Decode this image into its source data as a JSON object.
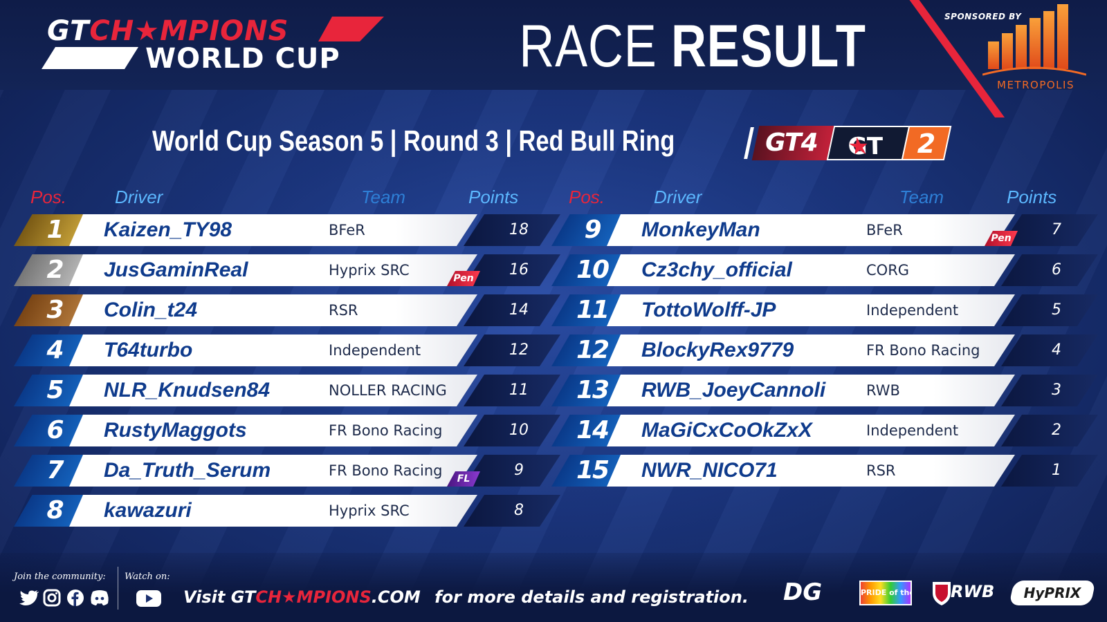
{
  "header": {
    "logo_line1_gt": "GT",
    "logo_line1_rest": "CH★MPIONS",
    "logo_line2": "WORLD CUP",
    "title_word1": "RACE",
    "title_word2": "RESULT",
    "sponsor_label": "SPONSORED BY",
    "sponsor_name": "METROPOLIS"
  },
  "event": {
    "subtitle": "World Cup Season 5 | Round 3 | Red Bull Ring",
    "class_gt4": "GT4",
    "class_gt": "GT",
    "class_star": "★",
    "class_num": "2"
  },
  "columns": {
    "pos": "Pos.",
    "driver": "Driver",
    "team": "Team",
    "points": "Points"
  },
  "results": [
    {
      "pos": "1",
      "driver": "Kaizen_TY98",
      "team": "BFeR",
      "points": "18",
      "tag": ""
    },
    {
      "pos": "2",
      "driver": "JusGaminReal",
      "team": "Hyprix SRC",
      "points": "16",
      "tag": "Pen"
    },
    {
      "pos": "3",
      "driver": "Colin_t24",
      "team": "RSR",
      "points": "14",
      "tag": ""
    },
    {
      "pos": "4",
      "driver": "T64turbo",
      "team": "Independent",
      "points": "12",
      "tag": ""
    },
    {
      "pos": "5",
      "driver": "NLR_Knudsen84",
      "team": "NOLLER RACING",
      "points": "11",
      "tag": ""
    },
    {
      "pos": "6",
      "driver": "RustyMaggots",
      "team": "FR Bono Racing",
      "points": "10",
      "tag": ""
    },
    {
      "pos": "7",
      "driver": "Da_Truth_Serum",
      "team": "FR Bono Racing",
      "points": "9",
      "tag": "FL"
    },
    {
      "pos": "8",
      "driver": "kawazuri",
      "team": "Hyprix SRC",
      "points": "8",
      "tag": ""
    },
    {
      "pos": "9",
      "driver": "MonkeyMan",
      "team": "BFeR",
      "points": "7",
      "tag": "Pen"
    },
    {
      "pos": "10",
      "driver": "Cz3chy_official",
      "team": "CORG",
      "points": "6",
      "tag": ""
    },
    {
      "pos": "11",
      "driver": "TottoWolff-JP",
      "team": "Independent",
      "points": "5",
      "tag": ""
    },
    {
      "pos": "12",
      "driver": "BlockyRex9779",
      "team": "FR Bono Racing",
      "points": "4",
      "tag": ""
    },
    {
      "pos": "13",
      "driver": "RWB_JoeyCannoli",
      "team": "RWB",
      "points": "3",
      "tag": ""
    },
    {
      "pos": "14",
      "driver": "MaGiCxCoOkZxX",
      "team": "Independent",
      "points": "2",
      "tag": ""
    },
    {
      "pos": "15",
      "driver": "NWR_NICO71",
      "team": "RSR",
      "points": "1",
      "tag": ""
    }
  ],
  "footer": {
    "join_label": "Join the community:",
    "watch_label": "Watch on:",
    "visit_word": "Visit",
    "site_gt": "GT",
    "site_ch": "CH★MPIONS",
    "site_tld": ".COM",
    "visit_tail": "for more details and registration.",
    "social_icons": [
      "twitter-icon",
      "instagram-icon",
      "facebook-icon",
      "discord-icon"
    ],
    "watch_icon": "youtube-icon",
    "partners": [
      "DG",
      "PRIDE of the Dragon",
      "RWB",
      "HyPRIX"
    ]
  },
  "colors": {
    "accent_red": "#e8253b",
    "accent_blue": "#5cb8ff",
    "driver_blue": "#0f3b8c",
    "metropolis_orange": "#f26a24"
  }
}
